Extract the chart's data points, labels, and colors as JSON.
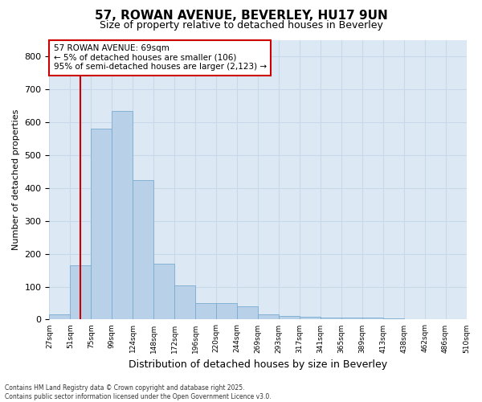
{
  "title_line1": "57, ROWAN AVENUE, BEVERLEY, HU17 9UN",
  "title_line2": "Size of property relative to detached houses in Beverley",
  "xlabel": "Distribution of detached houses by size in Beverley",
  "ylabel": "Number of detached properties",
  "bar_values": [
    15,
    165,
    580,
    635,
    425,
    170,
    105,
    50,
    50,
    40,
    15,
    10,
    8,
    5,
    5,
    5,
    3,
    2,
    2,
    1
  ],
  "categories": [
    "27sqm",
    "51sqm",
    "75sqm",
    "99sqm",
    "124sqm",
    "148sqm",
    "172sqm",
    "196sqm",
    "220sqm",
    "244sqm",
    "269sqm",
    "293sqm",
    "317sqm",
    "341sqm",
    "365sqm",
    "389sqm",
    "413sqm",
    "438sqm",
    "462sqm",
    "486sqm",
    "510sqm"
  ],
  "bar_color": "#b8d0e8",
  "bar_edgecolor": "#7aabcf",
  "grid_color": "#c8d8e8",
  "background_color": "#dce9f5",
  "figure_background": "#ffffff",
  "vline_color": "#cc0000",
  "vline_position": 1.5,
  "annotation_text": "57 ROWAN AVENUE: 69sqm\n← 5% of detached houses are smaller (106)\n95% of semi-detached houses are larger (2,123) →",
  "annotation_box_facecolor": "#ffffff",
  "annotation_box_edgecolor": "#cc0000",
  "ylim": [
    0,
    850
  ],
  "yticks": [
    0,
    100,
    200,
    300,
    400,
    500,
    600,
    700,
    800
  ],
  "footnote": "Contains HM Land Registry data © Crown copyright and database right 2025.\nContains public sector information licensed under the Open Government Licence v3.0."
}
